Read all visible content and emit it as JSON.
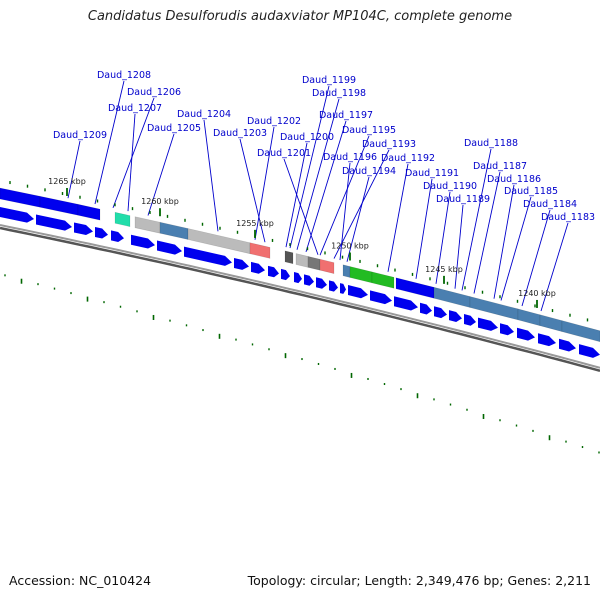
{
  "title": "Candidatus Desulforudis audaxviator MP104C, complete genome",
  "footer": {
    "accession": "Accession: NC_010424",
    "summary": "Topology: circular; Length: 2,349,476 bp; Genes: 2,211"
  },
  "ruler": [
    {
      "label": "1265 kbp"
    },
    {
      "label": "1260 kbp"
    },
    {
      "label": "1255 kbp"
    },
    {
      "label": "1250 kbp"
    },
    {
      "label": "1245 kbp"
    },
    {
      "label": "1240 kbp"
    }
  ],
  "genes": [
    {
      "label": "Daud_1208"
    },
    {
      "label": "Daud_1206"
    },
    {
      "label": "Daud_1207"
    },
    {
      "label": "Daud_1204"
    },
    {
      "label": "Daud_1205"
    },
    {
      "label": "Daud_1209"
    },
    {
      "label": "Daud_1202"
    },
    {
      "label": "Daud_1203"
    },
    {
      "label": "Daud_1199"
    },
    {
      "label": "Daud_1198"
    },
    {
      "label": "Daud_1197"
    },
    {
      "label": "Daud_1200"
    },
    {
      "label": "Daud_1195"
    },
    {
      "label": "Daud_1201"
    },
    {
      "label": "Daud_1193"
    },
    {
      "label": "Daud_1196"
    },
    {
      "label": "Daud_1192"
    },
    {
      "label": "Daud_1194"
    },
    {
      "label": "Daud_1191"
    },
    {
      "label": "Daud_1190"
    },
    {
      "label": "Daud_1189"
    },
    {
      "label": "Daud_1188"
    },
    {
      "label": "Daud_1187"
    },
    {
      "label": "Daud_1186"
    },
    {
      "label": "Daud_1185"
    },
    {
      "label": "Daud_1184"
    },
    {
      "label": "Daud_1183"
    }
  ],
  "colors": {
    "label": "#0000cc",
    "arrow": "#0000ee",
    "backbone": "#777777",
    "tick": "#006600",
    "steel": "#4a7fb0",
    "grey": "#bbbbbb",
    "salmon": "#f07070",
    "green": "#22bb22",
    "teal": "#22ddaa"
  }
}
